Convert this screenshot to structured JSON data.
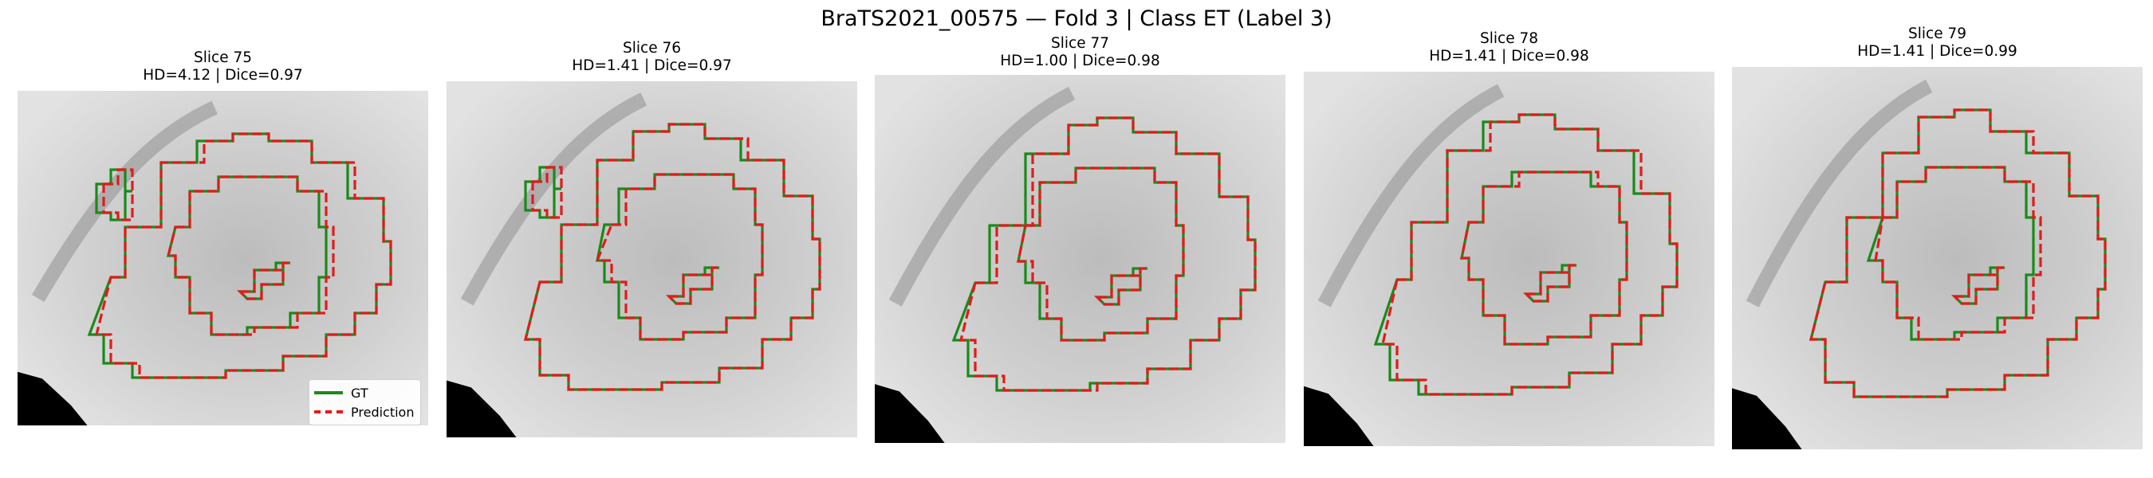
{
  "title": "BraTS2021_00575 — Fold 3 | Class ET (Label 3)",
  "colors": {
    "gt": "#1a8a1a",
    "prediction": "#e21b1b"
  },
  "legend": {
    "gt_label": "GT",
    "prediction_label": "Prediction"
  },
  "panels": [
    {
      "slice": "Slice 75",
      "metrics": "HD=4.12 | Dice=0.97"
    },
    {
      "slice": "Slice 76",
      "metrics": "HD=1.41 | Dice=0.97"
    },
    {
      "slice": "Slice 77",
      "metrics": "HD=1.00 | Dice=0.98"
    },
    {
      "slice": "Slice 78",
      "metrics": "HD=1.41 | Dice=0.98"
    },
    {
      "slice": "Slice 79",
      "metrics": "HD=1.41 | Dice=0.99"
    }
  ]
}
